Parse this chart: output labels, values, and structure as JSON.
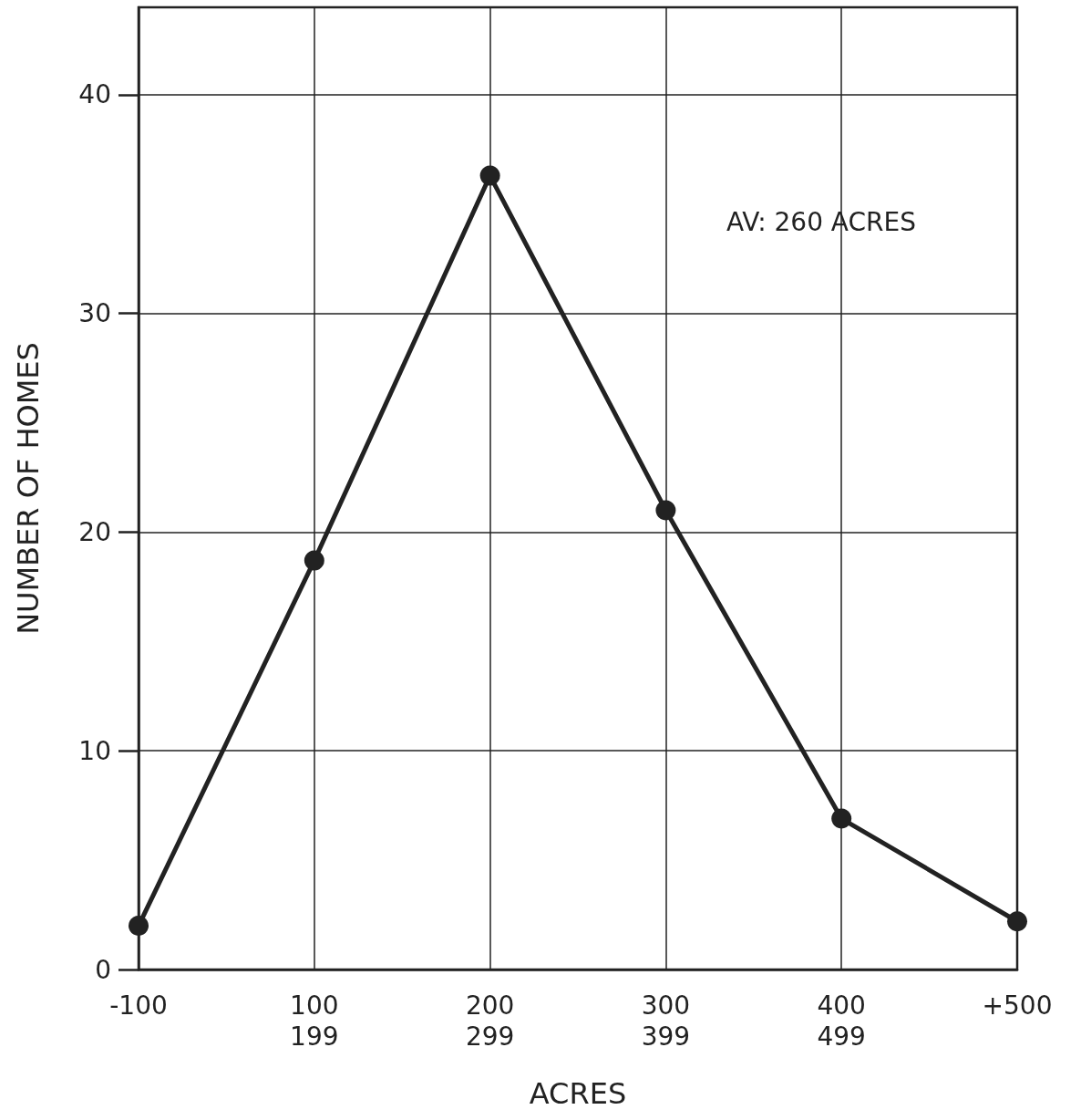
{
  "chart_data": {
    "type": "line",
    "xlabel": "ACRES",
    "ylabel": "NUMBER OF HOMES",
    "categories": [
      "-100",
      "100\n199",
      "200\n299",
      "300\n399",
      "400\n499",
      "+500"
    ],
    "series": [
      {
        "color": "#222222",
        "values": [
          2,
          18.7,
          36.3,
          21,
          6.9,
          2.2
        ]
      }
    ],
    "ylim": [
      0,
      44
    ],
    "yticks": [
      0,
      10,
      20,
      30,
      40
    ],
    "annotations": [
      "AV: 260 ACRES"
    ],
    "grid": true,
    "marker": "circle",
    "line_style": "solid"
  }
}
